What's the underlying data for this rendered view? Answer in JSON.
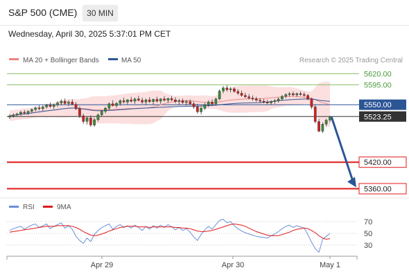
{
  "header": {
    "title": "S&P 500 (CME)",
    "timeframe": "30 MIN",
    "datetime": "Wednesday, April 30, 2025 5:37:01 PM CET"
  },
  "chart_data": [
    {
      "type": "candlestick",
      "title": "",
      "legend": [
        {
          "name": "MA 20 + Bollinger Bands",
          "color": "#f08080"
        },
        {
          "name": "MA 50",
          "color": "#2c5596"
        }
      ],
      "attribution": "Research © 2025 Trading Central",
      "levels": [
        {
          "value": 5620.0,
          "label": "5620.00",
          "color": "#8cc06b",
          "style": "thin"
        },
        {
          "value": 5595.0,
          "label": "5595.00",
          "color": "#8cc06b",
          "style": "thin"
        },
        {
          "value": 5550.0,
          "label": "5550.00",
          "color": "#2c5596",
          "style": "box"
        },
        {
          "value": 5523.25,
          "label": "5523.25",
          "color": "#333333",
          "style": "box"
        },
        {
          "value": 5420.0,
          "label": "5420.00",
          "color": "#e0191a",
          "style": "thick"
        },
        {
          "value": 5360.0,
          "label": "5360.00",
          "color": "#e0191a",
          "style": "thick"
        }
      ],
      "ylim": [
        5340,
        5640
      ],
      "x_tick_labels": [
        "Apr 29",
        "Apr 30",
        "May 1"
      ],
      "candles": [
        [
          5522,
          5528,
          5518,
          5525
        ],
        [
          5525,
          5530,
          5521,
          5527
        ],
        [
          5527,
          5532,
          5523,
          5529
        ],
        [
          5529,
          5536,
          5525,
          5533
        ],
        [
          5533,
          5538,
          5528,
          5531
        ],
        [
          5531,
          5537,
          5527,
          5535
        ],
        [
          5535,
          5542,
          5531,
          5539
        ],
        [
          5539,
          5546,
          5535,
          5543
        ],
        [
          5543,
          5549,
          5537,
          5541
        ],
        [
          5541,
          5548,
          5536,
          5545
        ],
        [
          5545,
          5552,
          5541,
          5549
        ],
        [
          5549,
          5555,
          5543,
          5546
        ],
        [
          5546,
          5552,
          5540,
          5550
        ],
        [
          5550,
          5558,
          5545,
          5554
        ],
        [
          5554,
          5562,
          5549,
          5558
        ],
        [
          5558,
          5564,
          5550,
          5553
        ],
        [
          5553,
          5560,
          5547,
          5556
        ],
        [
          5556,
          5562,
          5550,
          5551
        ],
        [
          5551,
          5556,
          5538,
          5541
        ],
        [
          5541,
          5546,
          5520,
          5525
        ],
        [
          5525,
          5530,
          5507,
          5512
        ],
        [
          5512,
          5523,
          5505,
          5520
        ],
        [
          5520,
          5526,
          5500,
          5504
        ],
        [
          5504,
          5520,
          5500,
          5516
        ],
        [
          5516,
          5530,
          5512,
          5527
        ],
        [
          5527,
          5538,
          5523,
          5535
        ],
        [
          5535,
          5545,
          5530,
          5542
        ],
        [
          5542,
          5555,
          5538,
          5552
        ],
        [
          5552,
          5560,
          5546,
          5548
        ],
        [
          5548,
          5556,
          5543,
          5553
        ],
        [
          5553,
          5562,
          5548,
          5559
        ],
        [
          5559,
          5566,
          5553,
          5556
        ],
        [
          5556,
          5563,
          5550,
          5561
        ],
        [
          5561,
          5568,
          5555,
          5558
        ],
        [
          5558,
          5566,
          5552,
          5563
        ],
        [
          5563,
          5570,
          5557,
          5560
        ],
        [
          5560,
          5566,
          5552,
          5556
        ],
        [
          5556,
          5564,
          5550,
          5561
        ],
        [
          5561,
          5567,
          5554,
          5557
        ],
        [
          5557,
          5564,
          5550,
          5562
        ],
        [
          5562,
          5568,
          5555,
          5558
        ],
        [
          5558,
          5565,
          5552,
          5563
        ],
        [
          5563,
          5569,
          5557,
          5560
        ],
        [
          5560,
          5566,
          5554,
          5564
        ],
        [
          5564,
          5570,
          5558,
          5561
        ],
        [
          5561,
          5567,
          5553,
          5557
        ],
        [
          5557,
          5563,
          5550,
          5559
        ],
        [
          5559,
          5564,
          5552,
          5555
        ],
        [
          5555,
          5561,
          5548,
          5557
        ],
        [
          5557,
          5562,
          5549,
          5552
        ],
        [
          5552,
          5557,
          5541,
          5545
        ],
        [
          5545,
          5552,
          5530,
          5534
        ],
        [
          5534,
          5546,
          5528,
          5542
        ],
        [
          5542,
          5554,
          5538,
          5550
        ],
        [
          5550,
          5560,
          5545,
          5556
        ],
        [
          5556,
          5562,
          5548,
          5552
        ],
        [
          5552,
          5566,
          5549,
          5563
        ],
        [
          5563,
          5585,
          5560,
          5581
        ],
        [
          5581,
          5592,
          5576,
          5588
        ],
        [
          5588,
          5594,
          5580,
          5584
        ],
        [
          5584,
          5590,
          5578,
          5586
        ],
        [
          5586,
          5590,
          5577,
          5580
        ],
        [
          5580,
          5585,
          5572,
          5576
        ],
        [
          5576,
          5582,
          5568,
          5571
        ],
        [
          5571,
          5577,
          5565,
          5568
        ],
        [
          5568,
          5574,
          5562,
          5565
        ],
        [
          5565,
          5571,
          5559,
          5563
        ],
        [
          5563,
          5568,
          5557,
          5560
        ],
        [
          5560,
          5565,
          5554,
          5558
        ],
        [
          5558,
          5563,
          5553,
          5556
        ],
        [
          5556,
          5561,
          5551,
          5554
        ],
        [
          5554,
          5560,
          5550,
          5557
        ],
        [
          5557,
          5563,
          5552,
          5559
        ],
        [
          5559,
          5566,
          5555,
          5563
        ],
        [
          5563,
          5572,
          5559,
          5569
        ],
        [
          5569,
          5576,
          5565,
          5573
        ],
        [
          5573,
          5579,
          5568,
          5575
        ],
        [
          5575,
          5580,
          5570,
          5572
        ],
        [
          5572,
          5578,
          5568,
          5575
        ],
        [
          5575,
          5580,
          5570,
          5573
        ],
        [
          5573,
          5578,
          5568,
          5571
        ],
        [
          5571,
          5574,
          5560,
          5563
        ],
        [
          5563,
          5566,
          5540,
          5545
        ],
        [
          5545,
          5550,
          5508,
          5512
        ],
        [
          5512,
          5518,
          5488,
          5490
        ],
        [
          5490,
          5510,
          5486,
          5506
        ],
        [
          5506,
          5518,
          5500,
          5515
        ],
        [
          5515,
          5525,
          5510,
          5523
        ]
      ],
      "forecast_arrow": {
        "from": 5523.25,
        "to": 5360.0
      }
    },
    {
      "type": "line",
      "title": "",
      "legend": [
        {
          "name": "RSI",
          "color": "#6b8fd6"
        },
        {
          "name": "9MA",
          "color": "#e0191a"
        }
      ],
      "levels": [
        {
          "value": 70,
          "label": "70"
        },
        {
          "value": 50,
          "label": "50"
        },
        {
          "value": 30,
          "label": "30"
        }
      ],
      "ylim": [
        10,
        85
      ],
      "series": [
        {
          "name": "RSI",
          "values": [
            55,
            58,
            60,
            62,
            57,
            61,
            64,
            66,
            60,
            63,
            66,
            58,
            62,
            65,
            68,
            59,
            63,
            57,
            45,
            38,
            33,
            42,
            36,
            48,
            55,
            60,
            63,
            66,
            57,
            62,
            65,
            60,
            63,
            59,
            64,
            60,
            55,
            62,
            57,
            63,
            59,
            64,
            60,
            65,
            61,
            56,
            60,
            55,
            58,
            52,
            44,
            38,
            48,
            56,
            62,
            57,
            65,
            72,
            74,
            68,
            70,
            63,
            58,
            54,
            51,
            49,
            47,
            45,
            44,
            43,
            42,
            46,
            49,
            53,
            58,
            62,
            64,
            60,
            63,
            61,
            59,
            48,
            35,
            24,
            18,
            40,
            45,
            50
          ]
        },
        {
          "name": "9MA",
          "values": [
            52,
            53,
            54,
            55,
            56,
            57,
            58,
            59,
            60,
            61,
            62,
            62,
            62,
            63,
            63,
            63,
            63,
            62,
            60,
            57,
            53,
            50,
            47,
            46,
            47,
            49,
            51,
            54,
            56,
            58,
            60,
            61,
            62,
            62,
            62,
            61,
            61,
            61,
            60,
            61,
            61,
            61,
            61,
            61,
            61,
            60,
            60,
            59,
            59,
            58,
            56,
            54,
            53,
            53,
            54,
            55,
            57,
            59,
            61,
            63,
            65,
            66,
            65,
            64,
            62,
            59,
            56,
            53,
            51,
            49,
            47,
            46,
            46,
            46,
            48,
            50,
            52,
            55,
            57,
            58,
            59,
            58,
            55,
            51,
            46,
            42,
            40,
            41
          ]
        }
      ]
    }
  ]
}
